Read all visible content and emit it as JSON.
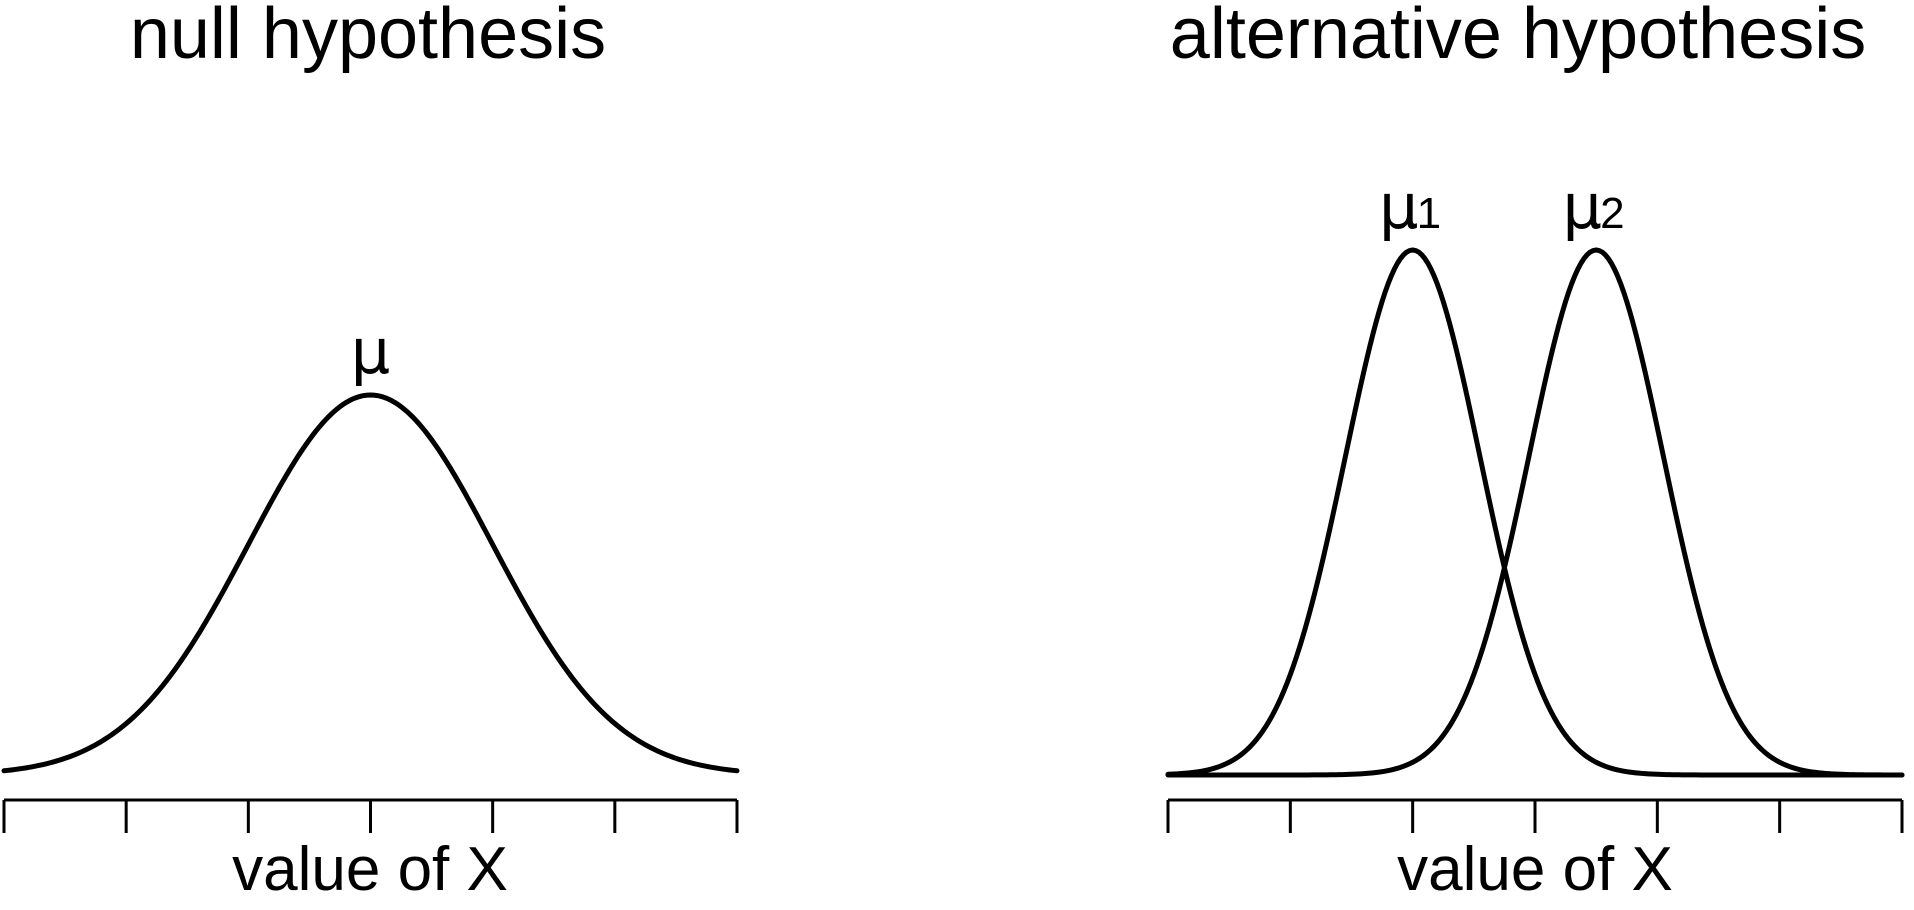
{
  "chart_data": [
    {
      "type": "line",
      "title": "null hypothesis",
      "xlabel": "value of X",
      "ylabel": "",
      "xlim": [
        -3,
        3
      ],
      "ticks_count": 7,
      "tick_labels": [],
      "series": [
        {
          "mean": 0,
          "sd": 1
        }
      ],
      "peak_labels": [
        {
          "symbol": "μ",
          "subscript": ""
        }
      ]
    },
    {
      "type": "line",
      "title": "alternative hypothesis",
      "xlabel": "value of X",
      "ylabel": "",
      "xlim": [
        -3,
        3
      ],
      "ticks_count": 7,
      "tick_labels": [],
      "series": [
        {
          "mean": -1,
          "sd": 0.55
        },
        {
          "mean": 0.5,
          "sd": 0.55
        }
      ],
      "peak_labels": [
        {
          "symbol": "μ",
          "subscript": "1"
        },
        {
          "symbol": "μ",
          "subscript": "2"
        }
      ]
    }
  ]
}
